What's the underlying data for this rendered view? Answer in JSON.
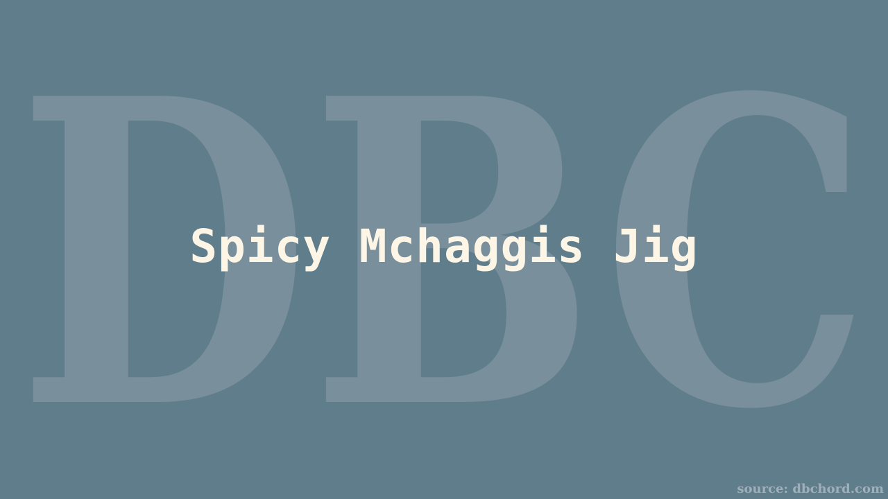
{
  "watermark": {
    "text": "DBC",
    "color": "#7a8f9c"
  },
  "title": "Spicy Mchaggis Jig",
  "source": "source: dbchord.com",
  "colors": {
    "background": "#607d8b",
    "title": "#fdf6e6",
    "source": "#9fb0ba"
  }
}
